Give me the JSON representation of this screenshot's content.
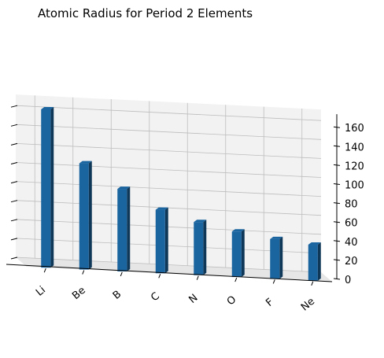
{
  "chart_data": {
    "type": "bar",
    "title": "Atomic Radius for Period 2 Elements",
    "xlabel": "",
    "ylabel": "",
    "zlabel": "",
    "categories": [
      "Li",
      "Be",
      "B",
      "C",
      "N",
      "O",
      "F",
      "Ne"
    ],
    "values": [
      167,
      112,
      87,
      67,
      56,
      48,
      42,
      38
    ],
    "zlim": [
      0,
      170
    ],
    "zticks": [
      0,
      20,
      40,
      60,
      80,
      100,
      120,
      140,
      160
    ],
    "grid": true,
    "projection": "3d",
    "bar_color": "#1a64a0",
    "pane_color": "#f2f2f2",
    "grid_color": "#bdbdbd"
  }
}
